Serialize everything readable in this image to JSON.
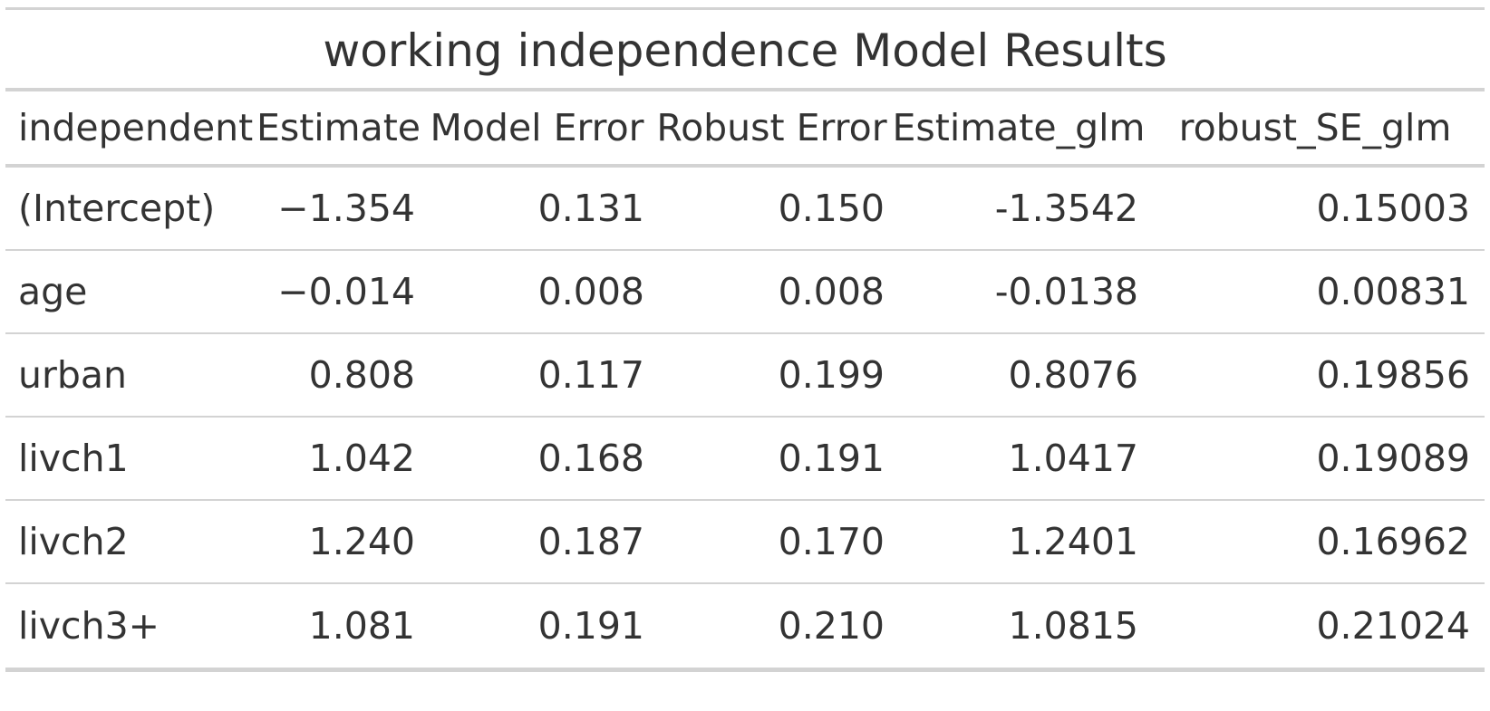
{
  "table": {
    "title": "working independence Model Results",
    "columns": [
      "independent",
      "Estimate",
      "Model Error",
      "Robust Error",
      "Estimate_glm",
      "robust_SE_glm"
    ],
    "rows": [
      [
        "(Intercept)",
        "−1.354",
        "0.131",
        "0.150",
        "-1.3542",
        "0.15003"
      ],
      [
        "age",
        "−0.014",
        "0.008",
        "0.008",
        "-0.0138",
        "0.00831"
      ],
      [
        "urban",
        "0.808",
        "0.117",
        "0.199",
        "0.8076",
        "0.19856"
      ],
      [
        "livch1",
        "1.042",
        "0.168",
        "0.191",
        "1.0417",
        "0.19089"
      ],
      [
        "livch2",
        "1.240",
        "0.187",
        "0.170",
        "1.2401",
        "0.16962"
      ],
      [
        "livch3+",
        "1.081",
        "0.191",
        "0.210",
        "1.0815",
        "0.21024"
      ]
    ]
  }
}
